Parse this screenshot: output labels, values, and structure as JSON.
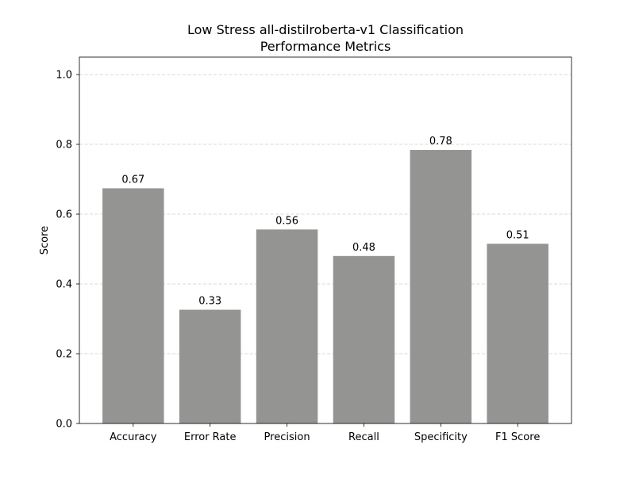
{
  "chart_data": {
    "type": "bar",
    "title_lines": [
      "Low Stress all-distilroberta-v1 Classification",
      "Performance Metrics"
    ],
    "xlabel": "",
    "ylabel": "Score",
    "categories": [
      "Accuracy",
      "Error Rate",
      "Precision",
      "Recall",
      "Specificity",
      "F1 Score"
    ],
    "values": [
      0.674,
      0.326,
      0.556,
      0.48,
      0.784,
      0.515
    ],
    "value_labels": [
      "0.67",
      "0.33",
      "0.56",
      "0.48",
      "0.78",
      "0.51"
    ],
    "ylim": [
      0,
      1.05
    ],
    "yticks": [
      0.0,
      0.2,
      0.4,
      0.6,
      0.8,
      1.0
    ],
    "ytick_labels": [
      "0.0",
      "0.2",
      "0.4",
      "0.6",
      "0.8",
      "1.0"
    ],
    "grid": {
      "y": true,
      "x": false,
      "style": "dashed"
    },
    "bar_color": "#949593",
    "grid_color": "#cccccc"
  }
}
